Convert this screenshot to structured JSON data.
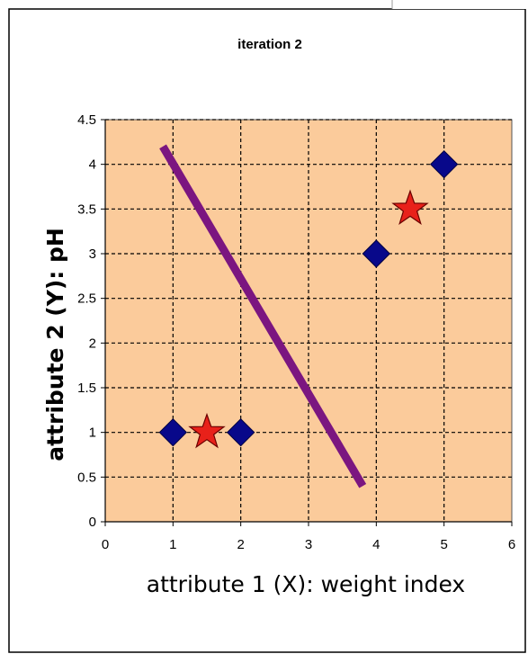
{
  "chart_data": {
    "type": "scatter",
    "title": "iteration 2",
    "xlabel": "attribute 1 (X): weight index",
    "ylabel": "attribute 2 (Y): pH",
    "xlim": [
      0,
      6
    ],
    "ylim": [
      0,
      4.5
    ],
    "x_ticks": [
      "0",
      "1",
      "2",
      "3",
      "4",
      "5",
      "6"
    ],
    "y_ticks": [
      "0",
      "0.5",
      "1",
      "1.5",
      "2",
      "2.5",
      "3",
      "3.5",
      "4",
      "4.5"
    ],
    "grid": true,
    "legend": false,
    "plot_background": "#fbcb9b",
    "series": [
      {
        "marker": "diamond",
        "color": "#08088a",
        "x": [
          1,
          2,
          4,
          5
        ],
        "y": [
          1,
          1,
          3,
          4
        ]
      },
      {
        "marker": "star",
        "color": "#e8211a",
        "x": [
          1.5,
          4.5
        ],
        "y": [
          1,
          3.5
        ]
      }
    ],
    "line": {
      "color": "#7b1680",
      "x": [
        0.85,
        3.8
      ],
      "y": [
        4.2,
        0.4
      ]
    }
  }
}
